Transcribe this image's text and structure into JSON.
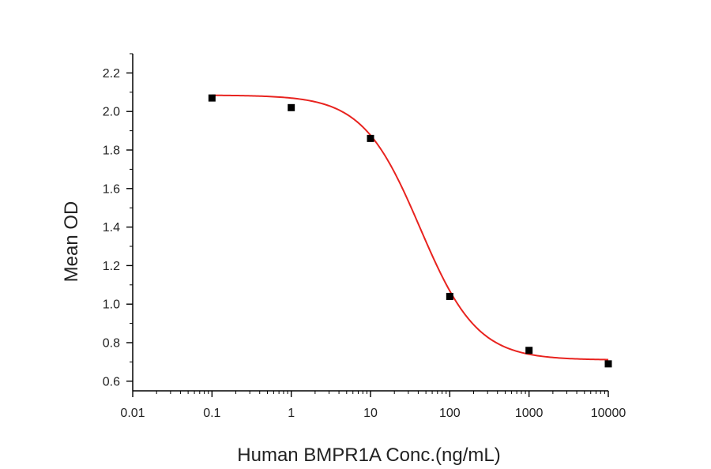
{
  "chart_data": {
    "type": "scatter",
    "title": "",
    "xlabel": "Human BMPR1A Conc.(ng/mL)",
    "ylabel": "Mean OD",
    "xscale": "log",
    "xlim": [
      0.01,
      10000
    ],
    "ylim": [
      0.55,
      2.3
    ],
    "x_tick_labels": [
      "0.01",
      "0.1",
      "1",
      "10",
      "100",
      "1000",
      "10000"
    ],
    "y_tick_labels": [
      "0.6",
      "0.8",
      "1.0",
      "1.2",
      "1.4",
      "1.6",
      "1.8",
      "2.0",
      "2.2"
    ],
    "grid": false,
    "legend": "none",
    "series": [
      {
        "kind": "points",
        "marker": "square",
        "color": "#000000",
        "x": [
          0.1,
          1,
          10,
          100,
          1000,
          10000
        ],
        "y": [
          2.07,
          2.02,
          1.86,
          1.04,
          0.76,
          0.69
        ]
      },
      {
        "kind": "fit-curve",
        "color": "#e8231f",
        "model": "4PL",
        "top": 2.085,
        "bottom": 0.71,
        "ec50": 42,
        "hill": 1.2
      }
    ]
  }
}
